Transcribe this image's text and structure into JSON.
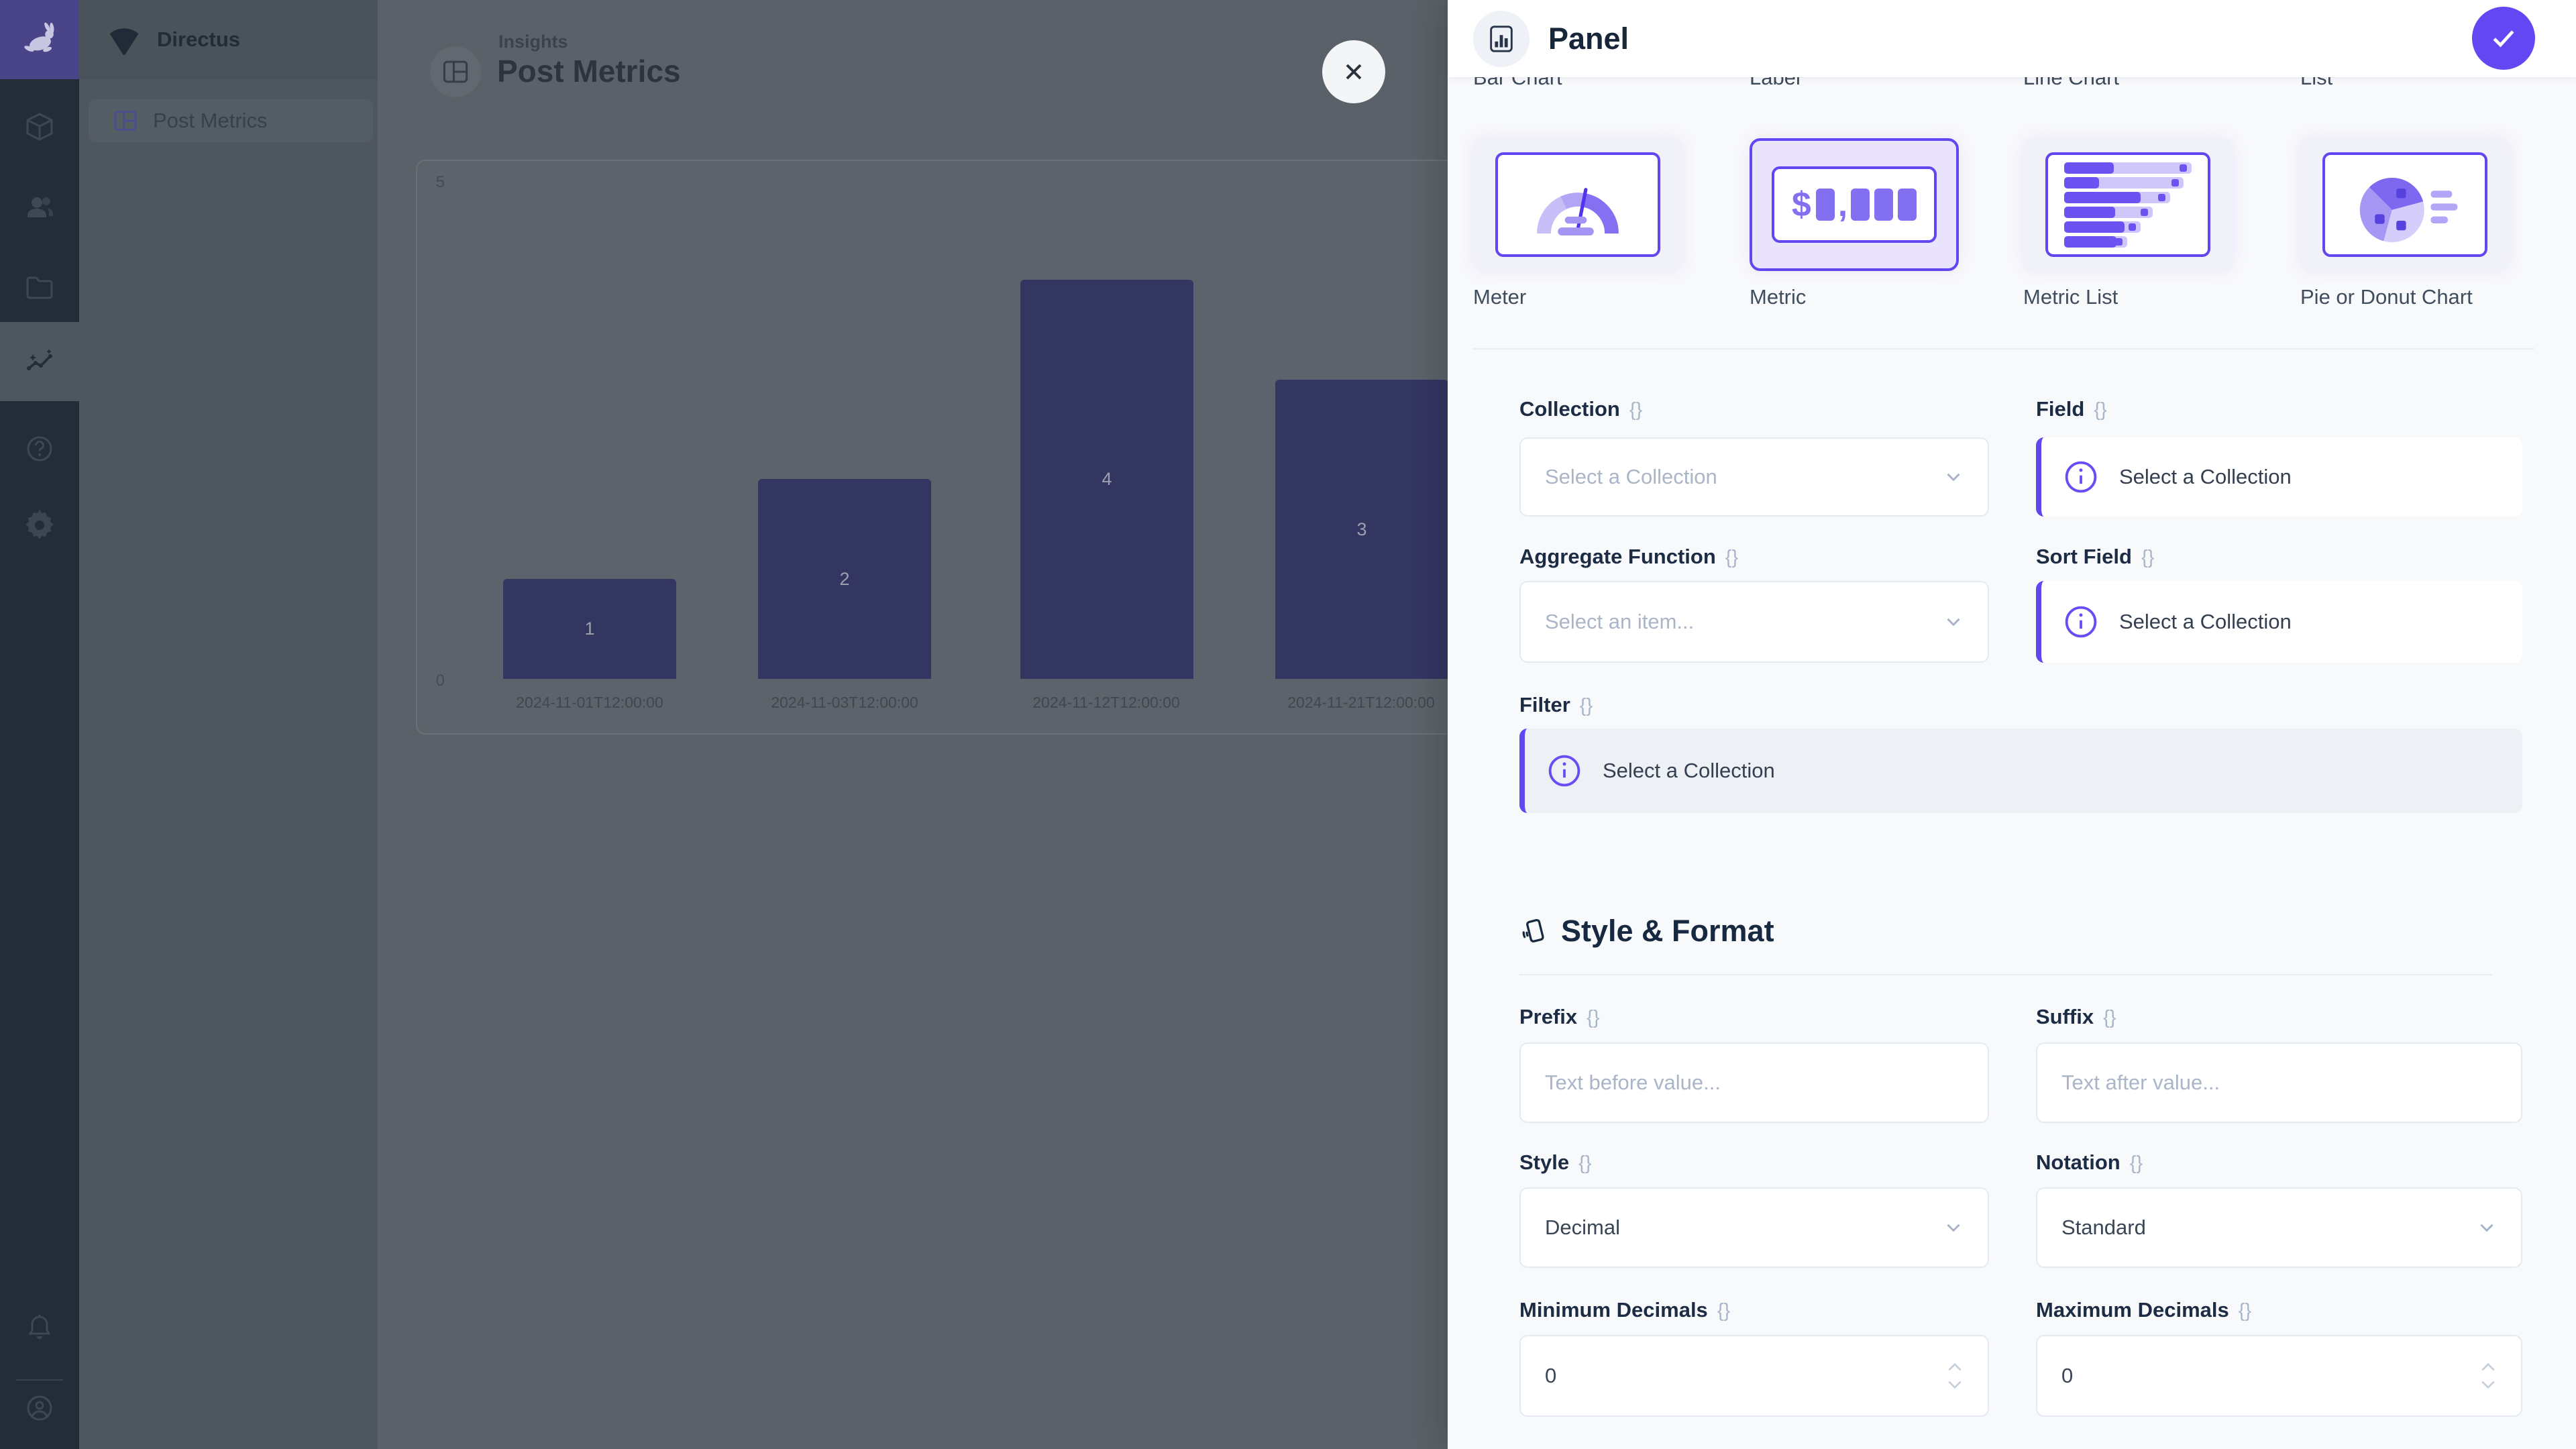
{
  "sidebar": {
    "project_name": "Directus",
    "nav_item": "Post Metrics",
    "modules": [
      {
        "icon": "content-cube-icon"
      },
      {
        "icon": "users-icon"
      },
      {
        "icon": "files-folder-icon"
      },
      {
        "icon": "insights-icon",
        "active": true
      },
      {
        "icon": "help-icon"
      },
      {
        "icon": "settings-gear-icon"
      }
    ],
    "bottom": [
      {
        "icon": "notifications-bell-icon"
      },
      {
        "icon": "account-avatar-icon"
      }
    ]
  },
  "page": {
    "eyebrow": "Insights",
    "title": "Post Metrics"
  },
  "chart_data": {
    "type": "bar",
    "categories": [
      "2024-11-01T12:00:00",
      "2024-11-03T12:00:00",
      "2024-11-12T12:00:00",
      "2024-11-21T12:00:00"
    ],
    "values": [
      1,
      2,
      4,
      3
    ],
    "ylim": [
      0,
      5
    ],
    "y_ticks": {
      "top": "5",
      "bottom": "0"
    },
    "bar_color": "#333661",
    "label_position": "inside",
    "grid": false,
    "legend": "none",
    "title": ""
  },
  "drawer": {
    "title": "Panel",
    "accent_color": "#6147f0",
    "prev_row_labels": [
      "Bar Chart",
      "Label",
      "Line Chart",
      "List"
    ],
    "panel_types": [
      {
        "label": "Meter",
        "icon": "meter-gauge-icon",
        "selected": false
      },
      {
        "label": "Metric",
        "icon": "metric-value-icon",
        "selected": true
      },
      {
        "label": "Metric List",
        "icon": "metric-list-icon",
        "selected": false
      },
      {
        "label": "Pie or Donut Chart",
        "icon": "pie-donut-icon",
        "selected": false
      }
    ],
    "raw_icon": "{}",
    "fields": {
      "collection": {
        "label": "Collection",
        "placeholder": "Select a Collection"
      },
      "field": {
        "label": "Field",
        "notice": "Select a Collection"
      },
      "aggregate": {
        "label": "Aggregate Function",
        "placeholder": "Select an item..."
      },
      "sort_field": {
        "label": "Sort Field",
        "notice": "Select a Collection"
      },
      "filter": {
        "label": "Filter",
        "notice": "Select a Collection"
      }
    },
    "section_title": "Style & Format",
    "format_fields": {
      "prefix": {
        "label": "Prefix",
        "placeholder": "Text before value..."
      },
      "suffix": {
        "label": "Suffix",
        "placeholder": "Text after value..."
      },
      "style": {
        "label": "Style",
        "value": "Decimal"
      },
      "notation": {
        "label": "Notation",
        "value": "Standard"
      },
      "min_decimals": {
        "label": "Minimum Decimals",
        "value": "0"
      },
      "max_decimals": {
        "label": "Maximum Decimals",
        "value": "0"
      }
    }
  }
}
